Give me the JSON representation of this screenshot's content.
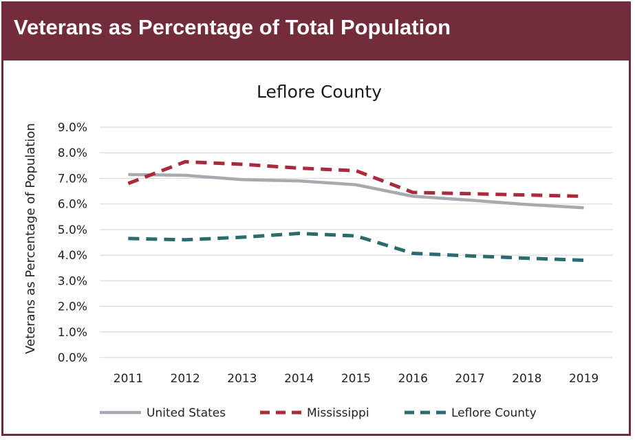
{
  "header": {
    "title": "Veterans as Percentage of Total Population"
  },
  "chart_data": {
    "type": "line",
    "title": "Leflore County",
    "xlabel": "",
    "ylabel": "Veterans as Percentage of Population",
    "categories": [
      "2011",
      "2012",
      "2013",
      "2014",
      "2015",
      "2016",
      "2017",
      "2018",
      "2019"
    ],
    "y_ticks": [
      "0.0%",
      "1.0%",
      "2.0%",
      "3.0%",
      "4.0%",
      "5.0%",
      "6.0%",
      "7.0%",
      "8.0%",
      "9.0%"
    ],
    "ylim": [
      0,
      9
    ],
    "grid": true,
    "legend_position": "bottom",
    "series": [
      {
        "name": "United States",
        "color": "#a6aab0",
        "style": "solid",
        "values": [
          7.15,
          7.12,
          6.95,
          6.9,
          6.75,
          6.3,
          6.15,
          5.98,
          5.85
        ]
      },
      {
        "name": "Mississippi",
        "color": "#a82a3c",
        "style": "dashed",
        "values": [
          6.8,
          7.65,
          7.55,
          7.4,
          7.3,
          6.45,
          6.4,
          6.35,
          6.3
        ]
      },
      {
        "name": "Leflore County",
        "color": "#2a6b6e",
        "style": "dashed",
        "values": [
          4.65,
          4.6,
          4.7,
          4.85,
          4.75,
          4.07,
          3.97,
          3.88,
          3.8
        ]
      }
    ]
  }
}
